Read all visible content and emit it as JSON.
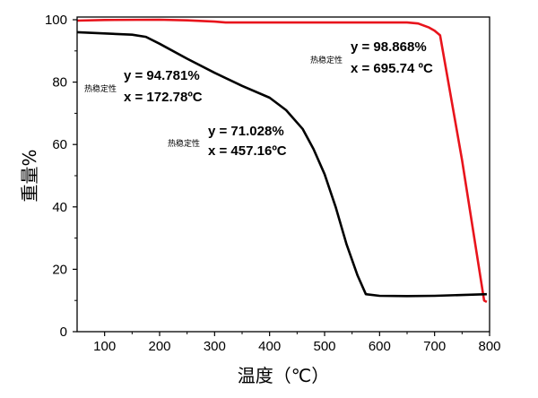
{
  "chart_data": {
    "type": "line",
    "title": "",
    "xlabel": "温度（℃）",
    "ylabel": "重量%",
    "xlim": [
      50,
      800
    ],
    "ylim": [
      0,
      101
    ],
    "xticks": [
      100,
      200,
      300,
      400,
      500,
      600,
      700,
      800
    ],
    "yticks": [
      0,
      20,
      40,
      60,
      80,
      100
    ],
    "grid": false,
    "series": [
      {
        "color": "#e8141c",
        "x": [
          50,
          100,
          200,
          250,
          300,
          320,
          400,
          500,
          600,
          650,
          670,
          690,
          700,
          710,
          750,
          790,
          795
        ],
        "y": [
          99.7,
          99.9,
          100,
          99.8,
          99.4,
          99.1,
          99.1,
          99.1,
          99.1,
          99.1,
          98.8,
          97.5,
          96.5,
          95,
          55,
          10,
          9.5
        ]
      },
      {
        "color": "#000000",
        "x": [
          50,
          100,
          150,
          175,
          200,
          250,
          300,
          350,
          400,
          430,
          460,
          480,
          500,
          520,
          540,
          560,
          575,
          600,
          650,
          700,
          795
        ],
        "y": [
          96,
          95.6,
          95.2,
          94.5,
          92.3,
          87.5,
          83,
          78.8,
          75,
          71,
          65,
          58.5,
          50.5,
          40,
          28,
          18,
          12,
          11.5,
          11.4,
          11.5,
          12
        ]
      }
    ],
    "annotations": [
      {
        "label": "热稳定性",
        "y_text": "y = 94.781%",
        "x_text": "x = 172.78ºC"
      },
      {
        "label": "热稳定性",
        "y_text": "y = 71.028%",
        "x_text": "x = 457.16ºC"
      },
      {
        "label": "热稳定性",
        "y_text": "y = 98.868%",
        "x_text": "x = 695.74 ºC"
      }
    ]
  }
}
